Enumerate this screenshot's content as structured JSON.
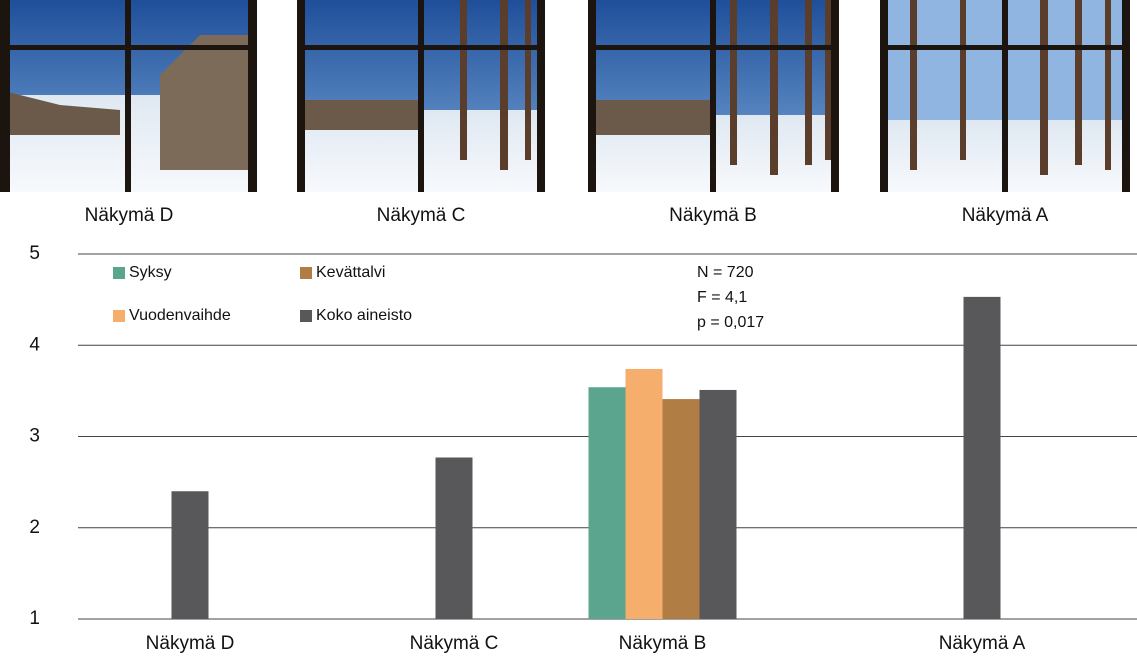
{
  "images": [
    {
      "caption": "Näkymä D"
    },
    {
      "caption": "Näkymä C"
    },
    {
      "caption": "Näkymä B"
    },
    {
      "caption": "Näkymä A"
    }
  ],
  "chart_data": {
    "type": "bar",
    "categories": [
      "Näkymä D",
      "Näkymä C",
      "Näkymä B",
      "Näkymä A"
    ],
    "series": [
      {
        "name": "Syksy",
        "color": "#5ba58f",
        "values": [
          null,
          null,
          3.54,
          null
        ]
      },
      {
        "name": "Vuodenvaihde",
        "color": "#f5ae6b",
        "values": [
          null,
          null,
          3.74,
          null
        ]
      },
      {
        "name": "Kevättalvi",
        "color": "#b07d45",
        "values": [
          null,
          null,
          3.41,
          null
        ]
      },
      {
        "name": "Koko aineisto",
        "color": "#58585a",
        "values": [
          2.4,
          2.77,
          3.51,
          4.53
        ]
      }
    ],
    "ylim": [
      1,
      5
    ],
    "yticks": [
      1,
      2,
      3,
      4,
      5
    ],
    "grid": true,
    "legend": "top-left",
    "annotations": [
      "N = 720",
      "F = 4,1",
      "p = 0,017"
    ]
  }
}
